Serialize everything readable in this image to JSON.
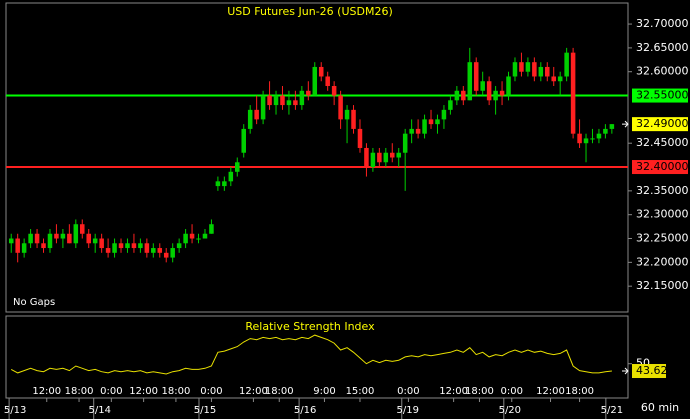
{
  "chart_data": {
    "type": "candlestick",
    "title": "USD Futures Jun-26 (USDM26)",
    "annotation": "No Gaps",
    "interval": "60 min",
    "ohlc": [
      [
        32.24,
        32.26,
        32.22,
        32.25
      ],
      [
        32.25,
        32.26,
        32.2,
        32.22
      ],
      [
        32.22,
        32.25,
        32.21,
        32.24
      ],
      [
        32.24,
        32.27,
        32.23,
        32.26
      ],
      [
        32.26,
        32.27,
        32.23,
        32.24
      ],
      [
        32.24,
        32.25,
        32.22,
        32.23
      ],
      [
        32.23,
        32.27,
        32.22,
        32.26
      ],
      [
        32.26,
        32.28,
        32.24,
        32.25
      ],
      [
        32.25,
        32.27,
        32.23,
        32.26
      ],
      [
        32.26,
        32.28,
        32.24,
        32.24
      ],
      [
        32.24,
        32.29,
        32.23,
        32.28
      ],
      [
        32.28,
        32.29,
        32.25,
        32.26
      ],
      [
        32.26,
        32.27,
        32.23,
        32.24
      ],
      [
        32.24,
        32.26,
        32.22,
        32.25
      ],
      [
        32.25,
        32.26,
        32.22,
        32.23
      ],
      [
        32.23,
        32.25,
        32.21,
        32.22
      ],
      [
        32.22,
        32.25,
        32.21,
        32.24
      ],
      [
        32.24,
        32.25,
        32.22,
        32.23
      ],
      [
        32.23,
        32.25,
        32.22,
        32.24
      ],
      [
        32.24,
        32.26,
        32.22,
        32.23
      ],
      [
        32.23,
        32.25,
        32.22,
        32.24
      ],
      [
        32.24,
        32.25,
        32.21,
        32.22
      ],
      [
        32.22,
        32.24,
        32.21,
        32.23
      ],
      [
        32.23,
        32.24,
        32.21,
        32.22
      ],
      [
        32.22,
        32.23,
        32.2,
        32.21
      ],
      [
        32.21,
        32.24,
        32.2,
        32.23
      ],
      [
        32.23,
        32.25,
        32.22,
        32.24
      ],
      [
        32.24,
        32.27,
        32.23,
        32.26
      ],
      [
        32.26,
        32.28,
        32.24,
        32.25
      ],
      [
        32.25,
        32.26,
        32.24,
        32.25
      ],
      [
        32.25,
        32.27,
        32.25,
        32.26
      ],
      [
        32.26,
        32.29,
        32.26,
        32.28
      ],
      [
        32.36,
        32.38,
        32.35,
        32.37
      ],
      [
        32.36,
        32.38,
        32.35,
        32.37
      ],
      [
        32.37,
        32.4,
        32.36,
        32.39
      ],
      [
        32.39,
        32.42,
        32.38,
        32.41
      ],
      [
        32.43,
        32.49,
        32.42,
        32.48
      ],
      [
        32.48,
        32.53,
        32.47,
        32.52
      ],
      [
        32.52,
        32.55,
        32.49,
        32.5
      ],
      [
        32.5,
        32.56,
        32.49,
        32.55
      ],
      [
        32.55,
        32.58,
        32.52,
        32.53
      ],
      [
        32.53,
        32.56,
        32.51,
        32.55
      ],
      [
        32.55,
        32.57,
        32.52,
        32.53
      ],
      [
        32.53,
        32.56,
        32.51,
        32.54
      ],
      [
        32.54,
        32.56,
        32.52,
        32.53
      ],
      [
        32.53,
        32.57,
        32.52,
        32.56
      ],
      [
        32.56,
        32.58,
        32.54,
        32.55
      ],
      [
        32.55,
        32.62,
        32.55,
        32.61
      ],
      [
        32.61,
        32.62,
        32.58,
        32.59
      ],
      [
        32.59,
        32.6,
        32.56,
        32.57
      ],
      [
        32.57,
        32.58,
        32.53,
        32.55
      ],
      [
        32.55,
        32.56,
        32.48,
        32.5
      ],
      [
        32.5,
        32.53,
        32.45,
        32.52
      ],
      [
        32.52,
        32.53,
        32.47,
        32.48
      ],
      [
        32.48,
        32.5,
        32.43,
        32.44
      ],
      [
        32.44,
        32.45,
        32.38,
        32.4
      ],
      [
        32.4,
        32.44,
        32.39,
        32.43
      ],
      [
        32.43,
        32.44,
        32.4,
        32.41
      ],
      [
        32.41,
        32.44,
        32.4,
        32.43
      ],
      [
        32.43,
        32.45,
        32.41,
        32.42
      ],
      [
        32.42,
        32.44,
        32.4,
        32.43
      ],
      [
        32.43,
        32.48,
        32.35,
        32.47
      ],
      [
        32.47,
        32.5,
        32.45,
        32.48
      ],
      [
        32.48,
        32.5,
        32.46,
        32.47
      ],
      [
        32.47,
        32.51,
        32.46,
        32.5
      ],
      [
        32.5,
        32.52,
        32.48,
        32.49
      ],
      [
        32.49,
        32.51,
        32.47,
        32.5
      ],
      [
        32.5,
        32.53,
        32.48,
        32.52
      ],
      [
        32.52,
        32.55,
        32.51,
        32.54
      ],
      [
        32.54,
        32.57,
        32.53,
        32.56
      ],
      [
        32.56,
        32.57,
        32.53,
        32.54
      ],
      [
        32.54,
        32.65,
        32.54,
        32.62
      ],
      [
        32.62,
        32.63,
        32.55,
        32.56
      ],
      [
        32.56,
        32.6,
        32.55,
        32.58
      ],
      [
        32.58,
        32.59,
        32.53,
        32.54
      ],
      [
        32.54,
        32.57,
        32.51,
        32.56
      ],
      [
        32.56,
        32.58,
        32.53,
        32.55
      ],
      [
        32.55,
        32.6,
        32.54,
        32.59
      ],
      [
        32.59,
        32.63,
        32.58,
        32.62
      ],
      [
        32.62,
        32.64,
        32.59,
        32.6
      ],
      [
        32.6,
        32.63,
        32.59,
        32.62
      ],
      [
        32.62,
        32.63,
        32.58,
        32.59
      ],
      [
        32.59,
        32.62,
        32.58,
        32.61
      ],
      [
        32.61,
        32.62,
        32.58,
        32.59
      ],
      [
        32.59,
        32.61,
        32.57,
        32.58
      ],
      [
        32.58,
        32.6,
        32.55,
        32.59
      ],
      [
        32.59,
        32.65,
        32.58,
        32.64
      ],
      [
        32.64,
        32.65,
        32.46,
        32.47
      ],
      [
        32.47,
        32.5,
        32.44,
        32.45
      ],
      [
        32.45,
        32.47,
        32.41,
        32.46
      ],
      [
        32.46,
        32.48,
        32.45,
        32.46
      ],
      [
        32.46,
        32.48,
        32.45,
        32.47
      ],
      [
        32.47,
        32.49,
        32.46,
        32.48
      ],
      [
        32.48,
        32.49,
        32.47,
        32.49
      ]
    ],
    "up_color": "#00d000",
    "down_color": "#ff2020",
    "xlim": [
      -0.5,
      95.5
    ],
    "ylim": [
      32.1,
      32.74
    ],
    "yticks": [
      {
        "value": 32.7,
        "label": "32.70000"
      },
      {
        "value": 32.65,
        "label": "32.65000"
      },
      {
        "value": 32.6,
        "label": "32.60000"
      },
      {
        "value": 32.45,
        "label": "32.45000"
      },
      {
        "value": 32.35,
        "label": "32.35000"
      },
      {
        "value": 32.3,
        "label": "32.30000"
      },
      {
        "value": 32.25,
        "label": "32.25000"
      },
      {
        "value": 32.2,
        "label": "32.20000"
      },
      {
        "value": 32.15,
        "label": "32.15000"
      }
    ],
    "hlines": [
      {
        "value": 32.55,
        "label": "32.55000",
        "color": "#00ff00"
      },
      {
        "value": 32.4,
        "label": "32.40000",
        "color": "#ff2020"
      }
    ],
    "last_price": {
      "value": 32.49,
      "label": "32.49000",
      "color": "#ffff00"
    },
    "xticks": [
      {
        "value": 5.5,
        "label": "12:00"
      },
      {
        "value": 10.5,
        "label": "18:00"
      },
      {
        "value": 15.5,
        "label": "0:00"
      },
      {
        "value": 20.5,
        "label": "12:00"
      },
      {
        "value": 25.5,
        "label": "18:00"
      },
      {
        "value": 31,
        "label": "0:00"
      },
      {
        "value": 37.5,
        "label": "12:00"
      },
      {
        "value": 41.5,
        "label": "18:00"
      },
      {
        "value": 48.5,
        "label": "9:00"
      },
      {
        "value": 54,
        "label": "15:00"
      },
      {
        "value": 61.5,
        "label": "0:00"
      },
      {
        "value": 68.5,
        "label": "12:00"
      },
      {
        "value": 72.5,
        "label": "18:00"
      },
      {
        "value": 77.5,
        "label": "0:00"
      },
      {
        "value": 83.5,
        "label": "12:00"
      },
      {
        "value": 88,
        "label": "18:00"
      }
    ],
    "date_ticks": [
      {
        "value": 0.6,
        "label": "5/13"
      },
      {
        "value": 13.7,
        "label": "5/14"
      },
      {
        "value": 30,
        "label": "5/15"
      },
      {
        "value": 45.5,
        "label": "5/16"
      },
      {
        "value": 61.4,
        "label": "5/19"
      },
      {
        "value": 77.2,
        "label": "5/20"
      },
      {
        "value": 93,
        "label": "5/21"
      }
    ],
    "rsi": {
      "title": "Relative Strength Index",
      "color": "#e8e000",
      "ylim": [
        20,
        90
      ],
      "yticks": [
        50
      ],
      "values": [
        45,
        42,
        44,
        46,
        44,
        43,
        46,
        45,
        46,
        44,
        48,
        46,
        44,
        45,
        43,
        42,
        44,
        43,
        44,
        43,
        44,
        42,
        43,
        42,
        41,
        43,
        44,
        46,
        45,
        45,
        46,
        48,
        60,
        61,
        63,
        65,
        69,
        72,
        71,
        73,
        72,
        73,
        71,
        72,
        71,
        73,
        72,
        75,
        73,
        71,
        68,
        62,
        64,
        60,
        55,
        50,
        53,
        51,
        53,
        52,
        53,
        56,
        57,
        56,
        58,
        57,
        58,
        59,
        60,
        62,
        60,
        64,
        58,
        60,
        56,
        58,
        57,
        60,
        62,
        60,
        62,
        60,
        61,
        59,
        58,
        59,
        62,
        48,
        44,
        43,
        42,
        42,
        43,
        43.62
      ],
      "last": {
        "value": 43.62,
        "label": "43.62"
      }
    }
  }
}
